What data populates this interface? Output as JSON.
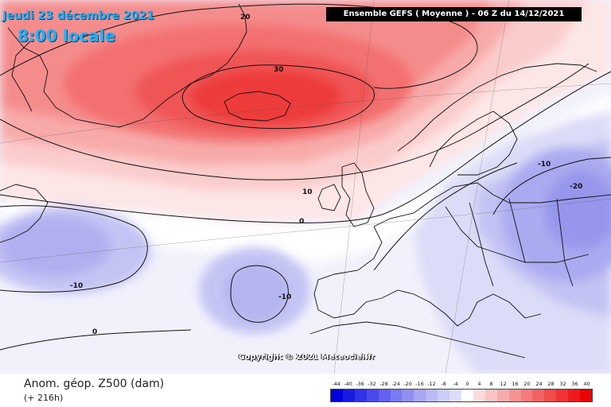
{
  "title": {
    "date": "Jeudi 23 décembre 2021",
    "time": "8:00 locale"
  },
  "header": {
    "text": "Ensemble GEFS  ( Moyenne )  -  06 Z du 14/12/2021"
  },
  "copyright": "Copyright © 2021 Meteociel.fr",
  "footer": {
    "variable": "Anom. géop. Z500 (dam)",
    "forecast_hour": "(+ 216h)"
  },
  "contour_labels": [
    "20",
    "30",
    "10",
    "0",
    "-10",
    "-10",
    "-10",
    "-20",
    "0"
  ],
  "legend": {
    "ticks": [
      "-44",
      "-40",
      "-36",
      "-32",
      "-28",
      "-24",
      "-20",
      "-16",
      "-12",
      "-8",
      "-4",
      "0",
      "4",
      "8",
      "12",
      "16",
      "20",
      "24",
      "28",
      "32",
      "36",
      "40"
    ],
    "colors": [
      "#0000d8",
      "#1a1ae0",
      "#3232e6",
      "#4a4aea",
      "#6262ee",
      "#7a7af0",
      "#9090f2",
      "#a6a6f4",
      "#babaf6",
      "#ccccf8",
      "#dedefa",
      "#ffffff",
      "#fcdcdc",
      "#fac4c4",
      "#f8acac",
      "#f69494",
      "#f47c7c",
      "#f26464",
      "#f04c4c",
      "#ee3434",
      "#ec1c1c",
      "#e80404"
    ]
  }
}
